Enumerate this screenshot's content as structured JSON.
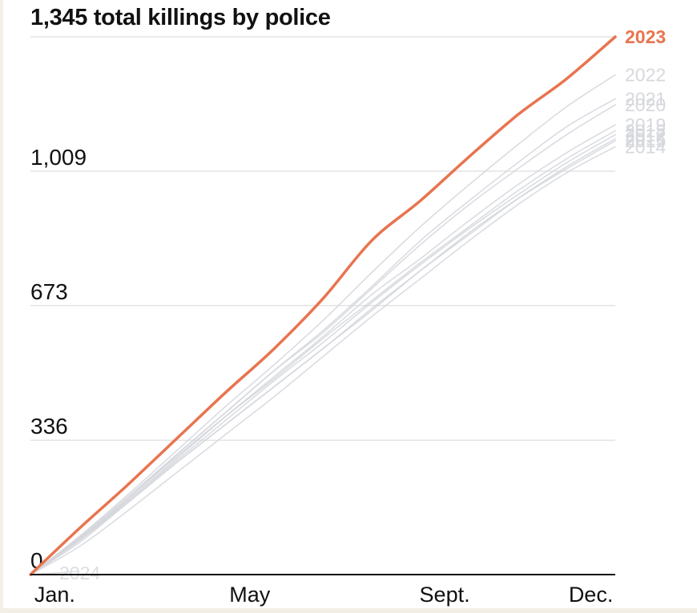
{
  "chart_data": {
    "type": "line",
    "title": "1,345 total killings by police",
    "xlabel": "",
    "ylabel": "",
    "x_ticks": [
      "Jan.",
      "May",
      "Sept.",
      "Dec."
    ],
    "x_tick_months": [
      1,
      5,
      9,
      12
    ],
    "x_range_months": [
      0.5,
      12.5
    ],
    "y_ticks": [
      0,
      336,
      673,
      1009
    ],
    "ylim": [
      0,
      1345
    ],
    "grid": true,
    "legend": "direct labels at line ends",
    "highlight_color": "#e8744f",
    "background_series_color": "#d3d6dc",
    "x_month": [
      0.5,
      1.5,
      2.5,
      3.5,
      4.5,
      5.5,
      6.5,
      7.5,
      8.5,
      9.5,
      10.5,
      11.5,
      12.5
    ],
    "series": [
      {
        "name": "2023",
        "highlight": true,
        "values": [
          0,
          115,
          225,
          340,
          455,
          565,
          690,
          835,
          935,
          1045,
          1150,
          1240,
          1345
        ]
      },
      {
        "name": "2022",
        "highlight": false,
        "values": [
          0,
          95,
          200,
          310,
          420,
          525,
          635,
          755,
          870,
          975,
          1075,
          1170,
          1250
        ]
      },
      {
        "name": "2021",
        "highlight": false,
        "values": [
          0,
          90,
          190,
          300,
          405,
          510,
          610,
          720,
          835,
          935,
          1030,
          1120,
          1190
        ]
      },
      {
        "name": "2020",
        "highlight": false,
        "values": [
          0,
          92,
          195,
          300,
          405,
          510,
          605,
          715,
          825,
          925,
          1015,
          1100,
          1175
        ]
      },
      {
        "name": "2019",
        "highlight": false,
        "values": [
          0,
          88,
          185,
          290,
          395,
          495,
          595,
          700,
          790,
          885,
          975,
          1055,
          1125
        ]
      },
      {
        "name": "2018",
        "highlight": false,
        "values": [
          0,
          90,
          190,
          295,
          395,
          490,
          590,
          685,
          780,
          870,
          960,
          1040,
          1110
        ]
      },
      {
        "name": "2017",
        "highlight": false,
        "values": [
          0,
          85,
          185,
          285,
          385,
          485,
          580,
          680,
          775,
          865,
          950,
          1030,
          1100
        ]
      },
      {
        "name": "2016",
        "highlight": false,
        "values": [
          0,
          80,
          180,
          280,
          375,
          470,
          565,
          660,
          760,
          850,
          940,
          1020,
          1090
        ]
      },
      {
        "name": "2015",
        "highlight": false,
        "values": [
          0,
          85,
          180,
          280,
          375,
          470,
          565,
          665,
          760,
          855,
          940,
          1015,
          1085
        ]
      },
      {
        "name": "2014",
        "highlight": false,
        "values": [
          0,
          70,
          160,
          255,
          350,
          445,
          545,
          645,
          740,
          835,
          925,
          1005,
          1070
        ]
      },
      {
        "name": "2024",
        "highlight": false,
        "values": [
          0,
          8
        ]
      }
    ],
    "end_labels": [
      "2023",
      "2022",
      "2021",
      "2020",
      "2019",
      "2018",
      "2017",
      "2016",
      "2015",
      "2014"
    ],
    "start_label": "2024"
  }
}
